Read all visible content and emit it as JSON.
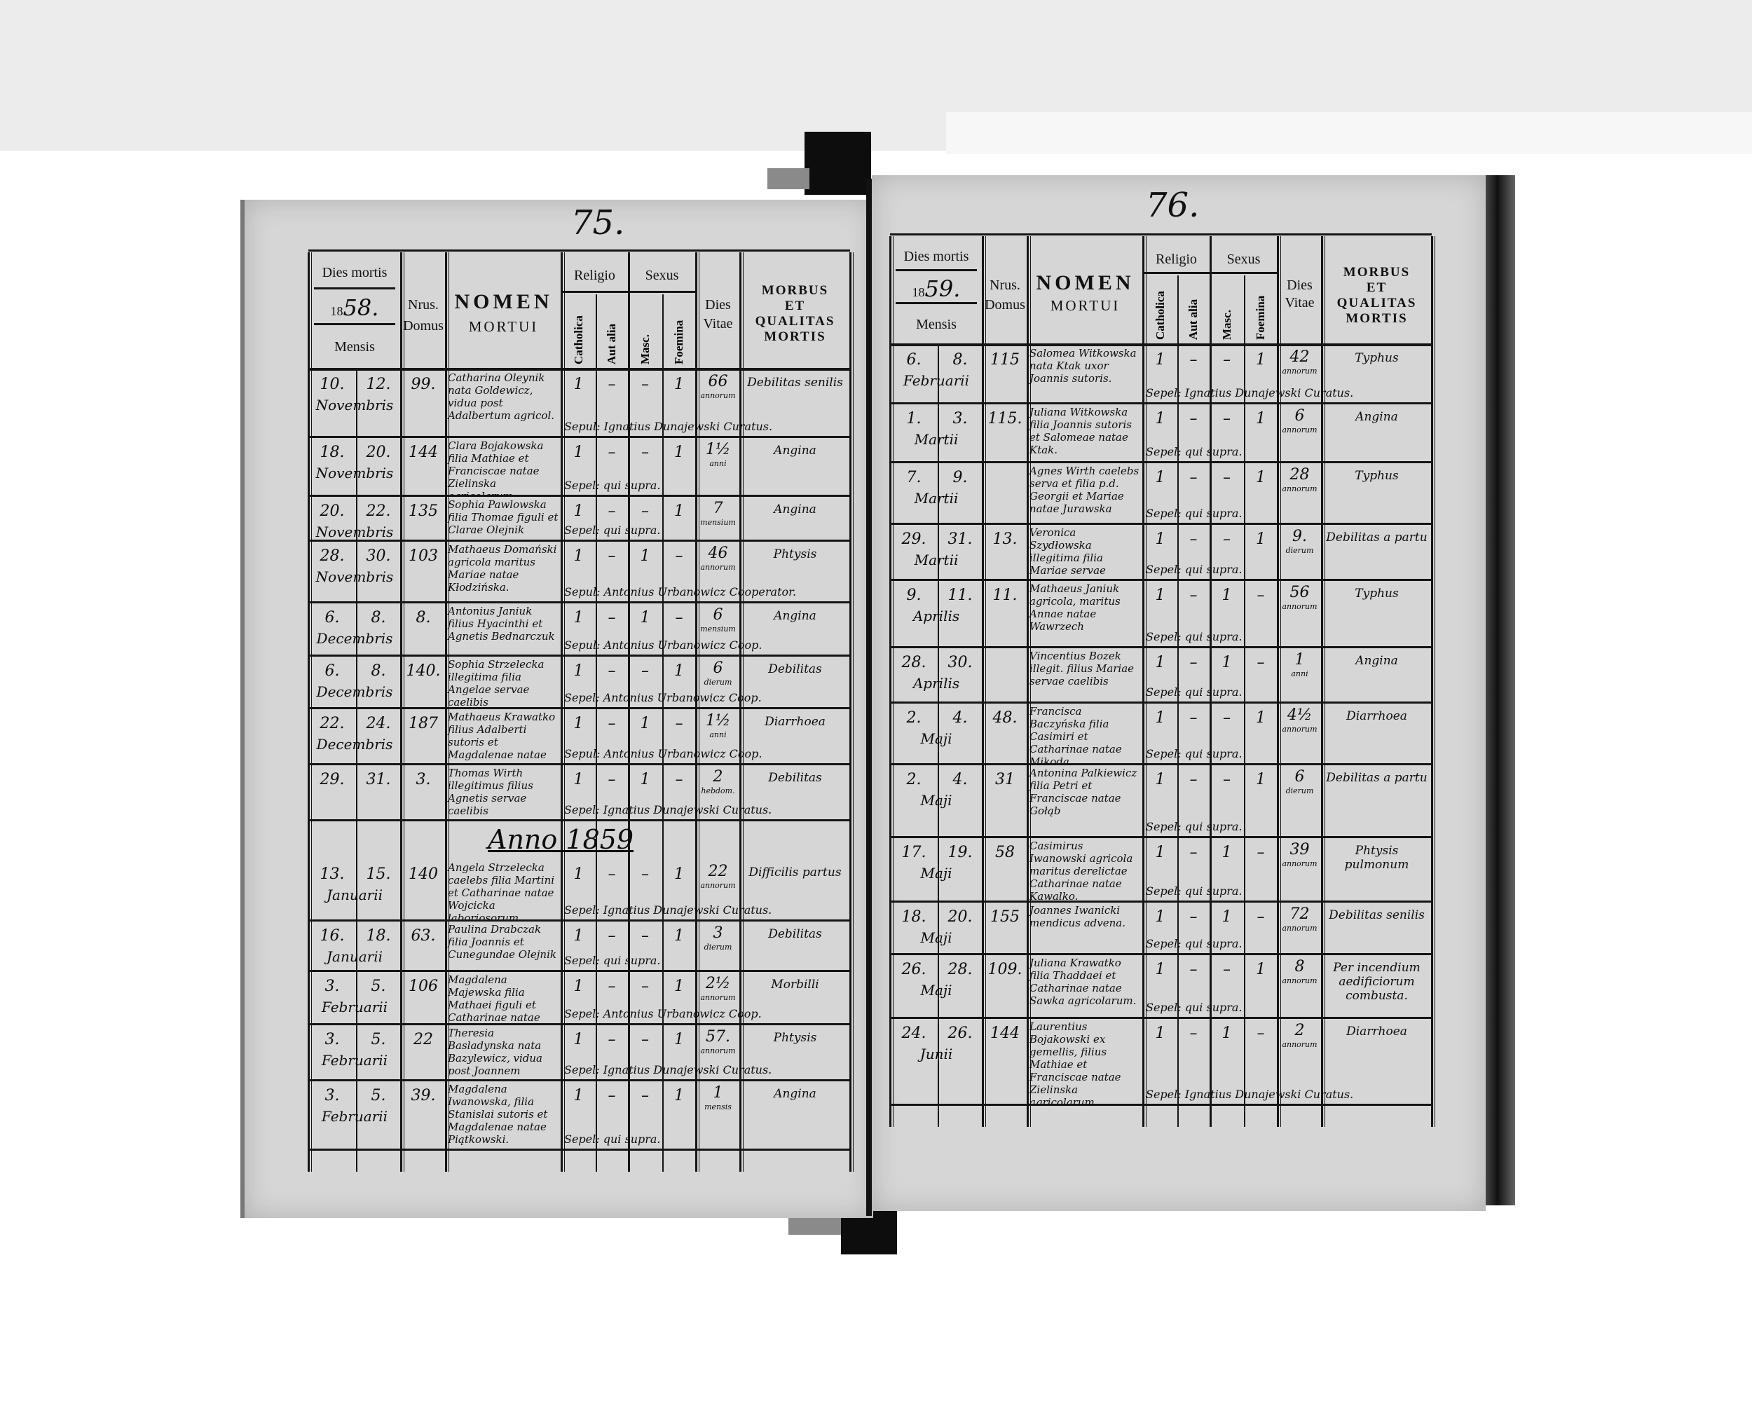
{
  "header": {
    "dies_mortis": "Dies mortis",
    "mensis": "Mensis",
    "nrus": "Nrus.",
    "domus": "Domus",
    "nomen": "NOMEN",
    "mortui": "MORTUI",
    "religio": "Religio",
    "catholica": "Catholica",
    "aut_alia": "Aut alia",
    "sexus": "Sexus",
    "masc": "Masc.",
    "foemina": "Foemina",
    "dies": "Dies",
    "vitae": "Vitae",
    "morbus": "MORBUS",
    "et": "ET",
    "qualitas": "QUALITAS",
    "mortis": "MORTIS"
  },
  "left": {
    "page_number": "75.",
    "year_printed": "18",
    "year_hand": "58.",
    "anno_heading": "Anno 1859",
    "rows": [
      {
        "d1": "10.",
        "d2": "12.",
        "month": "Novembris",
        "domus": "99.",
        "name": "Catharina Oleynik nata Goldewicz, vidua post Adalbertum agricol.",
        "cath": "1",
        "alia": "–",
        "masc": "–",
        "foem": "1",
        "vitae": "66",
        "unit": "annorum",
        "morbus": "Debilitas senilis",
        "sepul": "Sepul: Ignatius Dunajewski Curatus."
      },
      {
        "d1": "18.",
        "d2": "20.",
        "month": "Novembris",
        "domus": "144",
        "name": "Clara Bojakowska filia Mathiae et Franciscae natae Zielinska agricolarum.",
        "cath": "1",
        "alia": "–",
        "masc": "–",
        "foem": "1",
        "vitae": "1½",
        "unit": "anni",
        "morbus": "Angina",
        "sepul": "Sepel: qui supra."
      },
      {
        "d1": "20.",
        "d2": "22.",
        "month": "Novembris",
        "domus": "135",
        "name": "Sophia Pawlowska filia Thomae figuli et Clarae Olejnik",
        "cath": "1",
        "alia": "–",
        "masc": "–",
        "foem": "1",
        "vitae": "7",
        "unit": "mensium",
        "morbus": "Angina",
        "sepul": "Sepel: qui supra."
      },
      {
        "d1": "28.",
        "d2": "30.",
        "month": "Novembris",
        "domus": "103",
        "name": "Mathaeus Domański agricola maritus Mariae natae Kłodzińska.",
        "cath": "1",
        "alia": "–",
        "masc": "1",
        "foem": "–",
        "vitae": "46",
        "unit": "annorum",
        "morbus": "Phtysis",
        "sepul": "Sepul: Antonius Urbanowicz Cooperator."
      },
      {
        "d1": "6.",
        "d2": "8.",
        "month": "Decembris",
        "domus": "8.",
        "name": "Antonius Janiuk filius Hyacinthi et Agnetis Bednarczuk",
        "cath": "1",
        "alia": "–",
        "masc": "1",
        "foem": "–",
        "vitae": "6",
        "unit": "mensium",
        "morbus": "Angina",
        "sepul": "Sepul: Antonius Urbanowicz Coop."
      },
      {
        "d1": "6.",
        "d2": "8.",
        "month": "Decembris",
        "domus": "140.",
        "name": "Sophia Strzelecka illegitima filia Angelae servae caelibis",
        "cath": "1",
        "alia": "–",
        "masc": "–",
        "foem": "1",
        "vitae": "6",
        "unit": "dierum",
        "morbus": "Debilitas",
        "sepul": "Sepel: Antonius Urbanowicz Coop."
      },
      {
        "d1": "22.",
        "d2": "24.",
        "month": "Decembris",
        "domus": "187",
        "name": "Mathaeus Krawatko filius Adalberti sutoris et Magdalenae natae Orzechowska.",
        "cath": "1",
        "alia": "–",
        "masc": "1",
        "foem": "–",
        "vitae": "1½",
        "unit": "anni",
        "morbus": "Diarrhoea",
        "sepul": "Sepul: Antonius Urbanowicz Coop."
      },
      {
        "d1": "29.",
        "d2": "31.",
        "month": "",
        "domus": "3.",
        "name": "Thomas Wirth illegitimus filius Agnetis servae caelibis",
        "cath": "1",
        "alia": "–",
        "masc": "1",
        "foem": "–",
        "vitae": "2",
        "unit": "hebdom.",
        "morbus": "Debilitas",
        "sepul": "Sepel: Ignatius Dunajewski Curatus."
      },
      {
        "d1": "13.",
        "d2": "15.",
        "month": "Januarii",
        "domus": "140",
        "name": "Angela Strzelecka caelebs filia Martini et Catharinae natae Wojcicka laboriosorum",
        "cath": "1",
        "alia": "–",
        "masc": "–",
        "foem": "1",
        "vitae": "22",
        "unit": "annorum",
        "morbus": "Difficilis partus",
        "sepul": "Sepel: Ignatius Dunajewski Curatus."
      },
      {
        "d1": "16.",
        "d2": "18.",
        "month": "Januarii",
        "domus": "63.",
        "name": "Paulina Drabczak filia Joannis et Cunegundae Olejnik",
        "cath": "1",
        "alia": "–",
        "masc": "–",
        "foem": "1",
        "vitae": "3",
        "unit": "dierum",
        "morbus": "Debilitas",
        "sepul": "Sepel: qui supra."
      },
      {
        "d1": "3.",
        "d2": "5.",
        "month": "Februarii",
        "domus": "106",
        "name": "Magdalena Majewska filia Mathaei figuli et Catharinae natae Fabrycluk.",
        "cath": "1",
        "alia": "–",
        "masc": "–",
        "foem": "1",
        "vitae": "2½",
        "unit": "annorum",
        "morbus": "Morbilli",
        "sepul": "Sepel: Antonius Urbanowicz Coop."
      },
      {
        "d1": "3.",
        "d2": "5.",
        "month": "Februarii",
        "domus": "22",
        "name": "Theresia Basladynska nata Bazylewicz, vidua post Joannem agricolam",
        "cath": "1",
        "alia": "–",
        "masc": "–",
        "foem": "1",
        "vitae": "57.",
        "unit": "annorum",
        "morbus": "Phtysis",
        "sepul": "Sepel: Ignatius Dunajewski Curatus."
      },
      {
        "d1": "3.",
        "d2": "5.",
        "month": "Februarii",
        "domus": "39.",
        "name": "Magdalena Iwanowska, filia Stanislai sutoris et Magdalenae natae Piątkowski.",
        "cath": "1",
        "alia": "–",
        "masc": "–",
        "foem": "1",
        "vitae": "1",
        "unit": "mensis",
        "morbus": "Angina",
        "sepul": "Sepel: qui supra."
      }
    ]
  },
  "right": {
    "page_number": "76.",
    "year_printed": "18",
    "year_hand": "59.",
    "rows": [
      {
        "d1": "6.",
        "d2": "8.",
        "month": "Februarii",
        "domus": "115",
        "name": "Salomea Witkowska nata Ktak uxor Joannis sutoris.",
        "cath": "1",
        "alia": "–",
        "masc": "–",
        "foem": "1",
        "vitae": "42",
        "unit": "annorum",
        "morbus": "Typhus",
        "sepul": "Sepel: Ignatius Dunajewski Curatus."
      },
      {
        "d1": "1.",
        "d2": "3.",
        "month": "Martii",
        "domus": "115.",
        "name": "Juliana Witkowska filia Joannis sutoris et Salomeae natae Ktak.",
        "cath": "1",
        "alia": "–",
        "masc": "–",
        "foem": "1",
        "vitae": "6",
        "unit": "annorum",
        "morbus": "Angina",
        "sepul": "Sepel: qui supra."
      },
      {
        "d1": "7.",
        "d2": "9.",
        "month": "Martii",
        "domus": "",
        "name": "Agnes Wirth caelebs serva et filia p.d. Georgii et Mariae natae Jurawska",
        "cath": "1",
        "alia": "–",
        "masc": "–",
        "foem": "1",
        "vitae": "28",
        "unit": "annorum",
        "morbus": "Typhus",
        "sepul": "Sepel: qui supra."
      },
      {
        "d1": "29.",
        "d2": "31.",
        "month": "Martii",
        "domus": "13.",
        "name": "Veronica Szydłowska illegitima filia Mariae servae caelib.",
        "cath": "1",
        "alia": "–",
        "masc": "–",
        "foem": "1",
        "vitae": "9.",
        "unit": "dierum",
        "morbus": "Debilitas a partu",
        "sepul": "Sepel: qui supra."
      },
      {
        "d1": "9.",
        "d2": "11.",
        "month": "Aprilis",
        "domus": "11.",
        "name": "Mathaeus Janiuk agricola, maritus Annae natae Wawrzech",
        "cath": "1",
        "alia": "–",
        "masc": "1",
        "foem": "–",
        "vitae": "56",
        "unit": "annorum",
        "morbus": "Typhus",
        "sepul": "Sepel: qui supra."
      },
      {
        "d1": "28.",
        "d2": "30.",
        "month": "Aprilis",
        "domus": "",
        "name": "Vincentius Bozek illegit. filius Mariae servae caelibis",
        "cath": "1",
        "alia": "–",
        "masc": "1",
        "foem": "–",
        "vitae": "1",
        "unit": "anni",
        "morbus": "Angina",
        "sepul": "Sepel: qui supra."
      },
      {
        "d1": "2.",
        "d2": "4.",
        "month": "Maji",
        "domus": "48.",
        "name": "Francisca Baczyńska filia Casimiri et Catharinae natae Mikoda.",
        "cath": "1",
        "alia": "–",
        "masc": "–",
        "foem": "1",
        "vitae": "4½",
        "unit": "annorum",
        "morbus": "Diarrhoea",
        "sepul": "Sepel: qui supra."
      },
      {
        "d1": "2.",
        "d2": "4.",
        "month": "Maji",
        "domus": "31",
        "name": "Antonina Palkiewicz filia Petri et Franciscae natae Gołąb",
        "cath": "1",
        "alia": "–",
        "masc": "–",
        "foem": "1",
        "vitae": "6",
        "unit": "dierum",
        "morbus": "Debilitas a partu",
        "sepul": "Sepel: qui supra."
      },
      {
        "d1": "17.",
        "d2": "19.",
        "month": "Maji",
        "domus": "58",
        "name": "Casimirus Iwanowski agricola maritus derelictae Catharinae natae Kawalko.",
        "cath": "1",
        "alia": "–",
        "masc": "1",
        "foem": "–",
        "vitae": "39",
        "unit": "annorum",
        "morbus": "Phtysis pulmonum",
        "sepul": "Sepel: qui supra."
      },
      {
        "d1": "18.",
        "d2": "20.",
        "month": "Maji",
        "domus": "155",
        "name": "Joannes Iwanicki mendicus advena.",
        "cath": "1",
        "alia": "–",
        "masc": "1",
        "foem": "–",
        "vitae": "72",
        "unit": "annorum",
        "morbus": "Debilitas senilis",
        "sepul": "Sepel: qui supra."
      },
      {
        "d1": "26.",
        "d2": "28.",
        "month": "Maji",
        "domus": "109.",
        "name": "Juliana Krawatko filia Thaddaei et Catharinae natae Sawka agricolarum.",
        "cath": "1",
        "alia": "–",
        "masc": "–",
        "foem": "1",
        "vitae": "8",
        "unit": "annorum",
        "morbus": "Per incendium aedificiorum combusta.",
        "sepul": "Sepel: qui supra."
      },
      {
        "d1": "24.",
        "d2": "26.",
        "month": "Junii",
        "domus": "144",
        "name": "Laurentius Bojakowski ex gemellis, filius Mathiae et Franciscae natae Zielinska agricolarum.",
        "cath": "1",
        "alia": "–",
        "masc": "1",
        "foem": "–",
        "vitae": "2",
        "unit": "annorum",
        "morbus": "Diarrhoea",
        "sepul": "Sepel: Ignatius Dunajewski Curatus."
      }
    ]
  }
}
